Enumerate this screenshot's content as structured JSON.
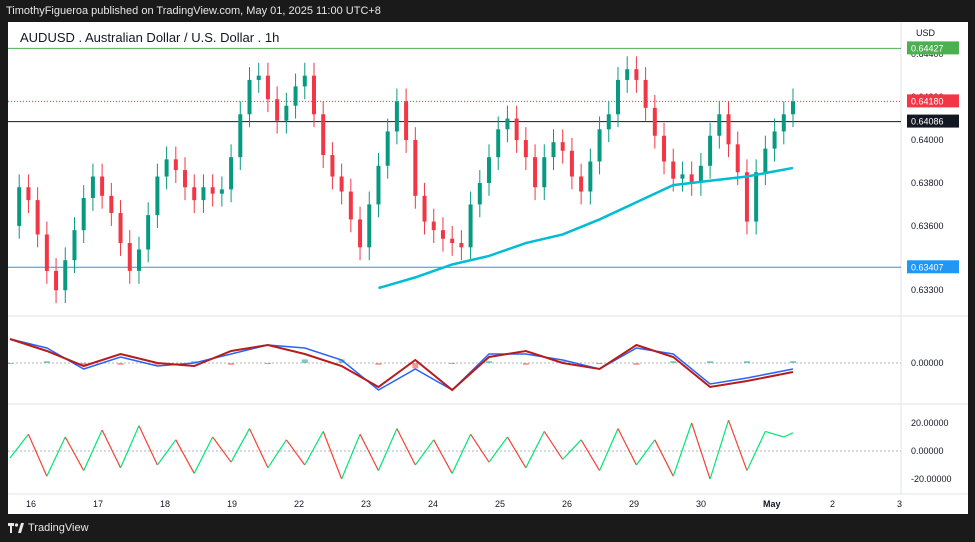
{
  "header": {
    "publisher": "TimothyFigueroa published on TradingView.com, May 01, 2025 11:00 UTC+8"
  },
  "footer": {
    "brand": "TradingView"
  },
  "symbol": {
    "title": "AUDUSD . Australian Dollar / U.S. Dollar . 1h",
    "currency": "USD"
  },
  "colors": {
    "up": "#089981",
    "down": "#f23645",
    "ma": "#00bcd4",
    "resistance": "#4caf50",
    "support": "#2196f3",
    "current": "#f23645",
    "macd_fast": "#2962ff",
    "macd_slow": "#b71c1c",
    "macd_cross": "#4caf50",
    "rsi_up": "#00e676",
    "rsi_down": "#f44336"
  },
  "chart_data": [
    {
      "type": "candlestick",
      "title": "AUDUSD . Australian Dollar / U.S. Dollar . 1h",
      "x_ticks": [
        "16",
        "17",
        "18",
        "19",
        "22",
        "23",
        "24",
        "25",
        "26",
        "29",
        "30",
        "May",
        "2",
        "3"
      ],
      "y_ticks": [
        "0.63300",
        "0.63600",
        "0.63800",
        "0.64000",
        "0.64200",
        "0.64400"
      ],
      "ylim": [
        0.6318,
        0.6455
      ],
      "price_levels": [
        {
          "label": "0.64427",
          "value": 0.64427,
          "role": "resistance"
        },
        {
          "label": "0.64180",
          "value": 0.6418,
          "role": "current"
        },
        {
          "label": "0.64086",
          "value": 0.64086,
          "role": "black"
        },
        {
          "label": "0.63407",
          "value": 0.63407,
          "role": "support"
        }
      ],
      "close_path": [
        [
          0,
          0.636
        ],
        [
          1,
          0.6378
        ],
        [
          2,
          0.6372
        ],
        [
          3,
          0.6356
        ],
        [
          4,
          0.6339
        ],
        [
          5,
          0.633
        ],
        [
          6,
          0.6344
        ],
        [
          7,
          0.6358
        ],
        [
          8,
          0.6373
        ],
        [
          9,
          0.6383
        ],
        [
          10,
          0.6374
        ],
        [
          11,
          0.6366
        ],
        [
          12,
          0.6352
        ],
        [
          13,
          0.6339
        ],
        [
          14,
          0.6349
        ],
        [
          15,
          0.6365
        ],
        [
          16,
          0.6383
        ],
        [
          17,
          0.6391
        ],
        [
          18,
          0.6386
        ],
        [
          19,
          0.6378
        ],
        [
          20,
          0.6372
        ],
        [
          21,
          0.6378
        ],
        [
          22,
          0.6375
        ],
        [
          23,
          0.6377
        ],
        [
          24,
          0.6392
        ],
        [
          25,
          0.6412
        ],
        [
          26,
          0.6428
        ],
        [
          27,
          0.643
        ],
        [
          28,
          0.6419
        ],
        [
          29,
          0.6409
        ],
        [
          30,
          0.6416
        ],
        [
          31,
          0.6425
        ],
        [
          32,
          0.643
        ],
        [
          33,
          0.6412
        ],
        [
          34,
          0.6393
        ],
        [
          35,
          0.6383
        ],
        [
          36,
          0.6376
        ],
        [
          37,
          0.6363
        ],
        [
          38,
          0.635
        ],
        [
          39,
          0.637
        ],
        [
          40,
          0.6388
        ],
        [
          41,
          0.6404
        ],
        [
          42,
          0.6418
        ],
        [
          43,
          0.64
        ],
        [
          44,
          0.6374
        ],
        [
          45,
          0.6362
        ],
        [
          46,
          0.6358
        ],
        [
          47,
          0.6354
        ],
        [
          48,
          0.6352
        ],
        [
          49,
          0.635
        ],
        [
          50,
          0.637
        ],
        [
          51,
          0.638
        ],
        [
          52,
          0.6392
        ],
        [
          53,
          0.6405
        ],
        [
          54,
          0.641
        ],
        [
          55,
          0.64
        ],
        [
          56,
          0.6392
        ],
        [
          57,
          0.6378
        ],
        [
          58,
          0.6392
        ],
        [
          59,
          0.6399
        ],
        [
          60,
          0.6395
        ],
        [
          61,
          0.6383
        ],
        [
          62,
          0.6376
        ],
        [
          63,
          0.639
        ],
        [
          64,
          0.6405
        ],
        [
          65,
          0.6412
        ],
        [
          66,
          0.6428
        ],
        [
          67,
          0.6433
        ],
        [
          68,
          0.6428
        ],
        [
          69,
          0.6415
        ],
        [
          70,
          0.6402
        ],
        [
          71,
          0.639
        ],
        [
          72,
          0.6382
        ],
        [
          73,
          0.6384
        ],
        [
          74,
          0.638
        ],
        [
          75,
          0.6388
        ],
        [
          76,
          0.6402
        ],
        [
          77,
          0.6412
        ],
        [
          78,
          0.6398
        ],
        [
          79,
          0.6385
        ],
        [
          80,
          0.6362
        ],
        [
          81,
          0.6385
        ],
        [
          82,
          0.6396
        ],
        [
          83,
          0.6404
        ],
        [
          84,
          0.6412
        ],
        [
          85,
          0.6418
        ]
      ],
      "ma_path": [
        [
          40,
          0.6331
        ],
        [
          44,
          0.6336
        ],
        [
          48,
          0.6342
        ],
        [
          52,
          0.6346
        ],
        [
          56,
          0.6352
        ],
        [
          60,
          0.6356
        ],
        [
          64,
          0.6363
        ],
        [
          68,
          0.6371
        ],
        [
          72,
          0.6379
        ],
        [
          76,
          0.6381
        ],
        [
          80,
          0.6383
        ],
        [
          85,
          0.6387
        ]
      ],
      "macd": {
        "type": "line",
        "y_ticks": [
          "0.00000"
        ],
        "fast_path": [
          [
            0,
            0.8
          ],
          [
            4,
            0.5
          ],
          [
            8,
            -0.2
          ],
          [
            12,
            0.2
          ],
          [
            16,
            -0.1
          ],
          [
            20,
            0.0
          ],
          [
            24,
            0.3
          ],
          [
            28,
            0.6
          ],
          [
            32,
            0.5
          ],
          [
            36,
            0.1
          ],
          [
            40,
            -0.9
          ],
          [
            44,
            -0.2
          ],
          [
            48,
            -0.9
          ],
          [
            52,
            0.3
          ],
          [
            56,
            0.3
          ],
          [
            60,
            0.1
          ],
          [
            64,
            -0.2
          ],
          [
            68,
            0.5
          ],
          [
            72,
            0.3
          ],
          [
            76,
            -0.7
          ],
          [
            80,
            -0.5
          ],
          [
            85,
            -0.2
          ]
        ],
        "slow_path": [
          [
            0,
            0.8
          ],
          [
            4,
            0.4
          ],
          [
            8,
            -0.1
          ],
          [
            12,
            0.3
          ],
          [
            16,
            0.0
          ],
          [
            20,
            -0.1
          ],
          [
            24,
            0.4
          ],
          [
            28,
            0.6
          ],
          [
            32,
            0.3
          ],
          [
            36,
            -0.1
          ],
          [
            40,
            -0.8
          ],
          [
            44,
            0.1
          ],
          [
            48,
            -0.9
          ],
          [
            52,
            0.2
          ],
          [
            56,
            0.4
          ],
          [
            60,
            0.0
          ],
          [
            64,
            -0.2
          ],
          [
            68,
            0.6
          ],
          [
            72,
            0.2
          ],
          [
            76,
            -0.8
          ],
          [
            80,
            -0.6
          ],
          [
            85,
            -0.3
          ]
        ]
      },
      "rsi": {
        "type": "line",
        "y_ticks": [
          "20.00000",
          "0.00000",
          "-20.00000"
        ],
        "path": [
          [
            0,
            -5
          ],
          [
            2,
            12
          ],
          [
            4,
            -18
          ],
          [
            6,
            10
          ],
          [
            8,
            -14
          ],
          [
            10,
            15
          ],
          [
            12,
            -12
          ],
          [
            14,
            18
          ],
          [
            16,
            -10
          ],
          [
            18,
            8
          ],
          [
            20,
            -16
          ],
          [
            22,
            10
          ],
          [
            24,
            -8
          ],
          [
            26,
            16
          ],
          [
            28,
            -12
          ],
          [
            30,
            8
          ],
          [
            32,
            -10
          ],
          [
            34,
            14
          ],
          [
            36,
            -20
          ],
          [
            38,
            12
          ],
          [
            40,
            -14
          ],
          [
            42,
            16
          ],
          [
            44,
            -10
          ],
          [
            46,
            8
          ],
          [
            48,
            -16
          ],
          [
            50,
            12
          ],
          [
            52,
            -8
          ],
          [
            54,
            10
          ],
          [
            56,
            -12
          ],
          [
            58,
            14
          ],
          [
            60,
            -6
          ],
          [
            62,
            8
          ],
          [
            64,
            -14
          ],
          [
            66,
            16
          ],
          [
            68,
            -10
          ],
          [
            70,
            8
          ],
          [
            72,
            -18
          ],
          [
            74,
            20
          ],
          [
            76,
            -20
          ],
          [
            78,
            22
          ],
          [
            80,
            -14
          ],
          [
            82,
            14
          ],
          [
            84,
            10
          ],
          [
            85,
            13
          ]
        ]
      }
    }
  ]
}
